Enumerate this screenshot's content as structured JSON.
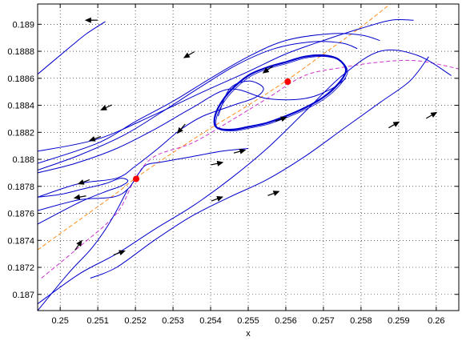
{
  "chart_data": {
    "type": "line",
    "title": "",
    "xlabel": "x",
    "ylabel": "",
    "xlim": [
      0.2494,
      0.2606
    ],
    "ylim": [
      0.18688,
      0.18915
    ],
    "grid": true,
    "grid_style": "dotted",
    "legend": "none",
    "x_ticks": [
      0.25,
      0.251,
      0.252,
      0.253,
      0.254,
      0.255,
      0.256,
      0.257,
      0.258,
      0.259,
      0.26
    ],
    "x_tick_labels": [
      "0.25",
      "0.251",
      "0.252",
      "0.253",
      "0.254",
      "0.255",
      "0.256",
      "0.257",
      "0.258",
      "0.259",
      "0.26"
    ],
    "y_ticks": [
      0.187,
      0.1872,
      0.1874,
      0.1876,
      0.1878,
      0.188,
      0.1882,
      0.1884,
      0.1886,
      0.1888,
      0.189
    ],
    "y_tick_labels": [
      "0.187",
      "0.1872",
      "0.1874",
      "0.1876",
      "0.1878",
      "0.188",
      "0.1882",
      "0.1884",
      "0.1886",
      "0.1888",
      "0.189"
    ],
    "colors": {
      "trajectory": "#0000cc",
      "nullcline_orange": "#ff8c1a",
      "nullcline_magenta": "#cc33cc",
      "equilibrium": "#ff0000",
      "arrow": "#000000"
    },
    "equilibria": [
      {
        "x": 0.25202,
        "y": 0.187855
      },
      {
        "x": 0.25605,
        "y": 0.188575
      }
    ],
    "series": [
      {
        "role": "nullcline-orange",
        "x": [
          0.2494,
          0.2505,
          0.2515,
          0.252,
          0.253,
          0.254,
          0.255,
          0.256,
          0.257,
          0.258,
          0.259
        ],
        "y": [
          0.18733,
          0.18755,
          0.18775,
          0.18786,
          0.18805,
          0.18823,
          0.1884,
          0.18858,
          0.18878,
          0.18898,
          0.1892
        ]
      },
      {
        "role": "nullcline-magenta",
        "x": [
          0.2495,
          0.2505,
          0.2515,
          0.252,
          0.2525,
          0.2535,
          0.2545,
          0.2555,
          0.2565,
          0.2575,
          0.2585,
          0.2595,
          0.2606
        ],
        "y": [
          0.18712,
          0.18735,
          0.1876,
          0.18786,
          0.18802,
          0.18812,
          0.18828,
          0.18845,
          0.18862,
          0.18868,
          0.18872,
          0.18873,
          0.18867
        ]
      },
      {
        "role": "limit-cycle",
        "x": [
          0.2541,
          0.2542,
          0.2545,
          0.255,
          0.2555,
          0.256,
          0.2565,
          0.257,
          0.2574,
          0.2576,
          0.2574,
          0.257,
          0.2565,
          0.256,
          0.2555,
          0.255,
          0.2546,
          0.2542,
          0.2541
        ],
        "y": [
          0.18828,
          0.18838,
          0.1885,
          0.18862,
          0.18868,
          0.18872,
          0.18876,
          0.18877,
          0.18874,
          0.18866,
          0.18856,
          0.18846,
          0.18838,
          0.18832,
          0.18827,
          0.18824,
          0.18822,
          0.18823,
          0.18828
        ]
      },
      {
        "role": "trajectory",
        "x": [
          0.2512,
          0.2507,
          0.2503,
          0.2494
        ],
        "y": [
          0.18902,
          0.18893,
          0.18884,
          0.18863
        ]
      },
      {
        "role": "trajectory",
        "x": [
          0.2594,
          0.2588,
          0.258,
          0.257,
          0.256,
          0.255,
          0.2538,
          0.2525,
          0.251,
          0.2494
        ],
        "y": [
          0.18903,
          0.18903,
          0.18897,
          0.18888,
          0.18878,
          0.18865,
          0.1885,
          0.18833,
          0.18815,
          0.18806
        ]
      },
      {
        "role": "trajectory",
        "x": [
          0.2585,
          0.258,
          0.2572,
          0.256,
          0.255,
          0.254,
          0.253,
          0.252,
          0.251,
          0.2494
        ],
        "y": [
          0.18888,
          0.18892,
          0.18893,
          0.18888,
          0.18876,
          0.1886,
          0.18843,
          0.18828,
          0.18812,
          0.18797
        ]
      },
      {
        "role": "trajectory",
        "x": [
          0.2579,
          0.2575,
          0.2567,
          0.2557,
          0.2547,
          0.2537,
          0.2527,
          0.2517,
          0.2505,
          0.2494
        ],
        "y": [
          0.18882,
          0.18886,
          0.18887,
          0.18882,
          0.1887,
          0.18853,
          0.18835,
          0.18818,
          0.18803,
          0.18792
        ]
      },
      {
        "role": "trajectory",
        "x": [
          0.2576,
          0.2572,
          0.2565,
          0.2555,
          0.2545,
          0.2535,
          0.2525,
          0.2515,
          0.2504,
          0.2494
        ],
        "y": [
          0.1886,
          0.18852,
          0.18845,
          0.18845,
          0.18852,
          0.18838,
          0.18822,
          0.18808,
          0.18797,
          0.1879
        ]
      },
      {
        "role": "trajectory",
        "x": [
          0.2494,
          0.2505,
          0.2515,
          0.252,
          0.2526,
          0.2532,
          0.2538,
          0.2546,
          0.2552,
          0.2554,
          0.255,
          0.2545,
          0.2542
        ],
        "y": [
          0.18772,
          0.18782,
          0.18786,
          0.18795,
          0.18808,
          0.18822,
          0.18832,
          0.1884,
          0.18846,
          0.18853,
          0.18858,
          0.18852,
          0.18832
        ]
      },
      {
        "role": "trajectory",
        "x": [
          0.2494,
          0.2505,
          0.2512,
          0.2516,
          0.2518,
          0.2516,
          0.2512,
          0.2506,
          0.25,
          0.2494
        ],
        "y": [
          0.18752,
          0.18768,
          0.18776,
          0.1878,
          0.18784,
          0.18786,
          0.18782,
          0.18778,
          0.18774,
          0.18772
        ]
      },
      {
        "role": "trajectory",
        "x": [
          0.2494,
          0.2505,
          0.2514,
          0.2518,
          0.2521,
          0.2523,
          0.2527,
          0.2535,
          0.2543,
          0.255
        ],
        "y": [
          0.18762,
          0.1877,
          0.18772,
          0.18778,
          0.1879,
          0.18796,
          0.18798,
          0.18802,
          0.18806,
          0.18808
        ]
      },
      {
        "role": "trajectory",
        "x": [
          0.2494,
          0.2502,
          0.2508,
          0.2512,
          0.2515,
          0.2518
        ],
        "y": [
          0.18688,
          0.18715,
          0.18733,
          0.18748,
          0.18762,
          0.18778
        ]
      },
      {
        "role": "trajectory",
        "x": [
          0.2494,
          0.2505,
          0.2515,
          0.2525,
          0.2535,
          0.2545,
          0.2555,
          0.2565,
          0.2575,
          0.2585,
          0.2595,
          0.2604
        ],
        "y": [
          0.18693,
          0.18715,
          0.1873,
          0.18748,
          0.18765,
          0.18785,
          0.18808,
          0.18835,
          0.18862,
          0.1888,
          0.18877,
          0.18862
        ]
      },
      {
        "role": "trajectory",
        "x": [
          0.2508,
          0.2515,
          0.2525,
          0.2535,
          0.2545,
          0.2555,
          0.2565,
          0.2575,
          0.2585,
          0.2593,
          0.2598
        ],
        "y": [
          0.18712,
          0.1872,
          0.1874,
          0.18758,
          0.18772,
          0.18785,
          0.18802,
          0.18822,
          0.18842,
          0.18858,
          0.18876
        ]
      }
    ],
    "arrows": [
      {
        "x": 0.2508,
        "y": 0.18903,
        "dir": 180
      },
      {
        "x": 0.2534,
        "y": 0.18877,
        "dir": 210
      },
      {
        "x": 0.2512,
        "y": 0.18838,
        "dir": 205
      },
      {
        "x": 0.2509,
        "y": 0.18815,
        "dir": 200
      },
      {
        "x": 0.2555,
        "y": 0.18866,
        "dir": 215
      },
      {
        "x": 0.2532,
        "y": 0.18822,
        "dir": 230
      },
      {
        "x": 0.2506,
        "y": 0.18783,
        "dir": 200
      },
      {
        "x": 0.2505,
        "y": 0.18772,
        "dir": 190
      },
      {
        "x": 0.2542,
        "y": 0.18797,
        "dir": 12
      },
      {
        "x": 0.2548,
        "y": 0.18806,
        "dir": 15
      },
      {
        "x": 0.2559,
        "y": 0.1883,
        "dir": 20
      },
      {
        "x": 0.2505,
        "y": 0.18737,
        "dir": 55
      },
      {
        "x": 0.2516,
        "y": 0.18731,
        "dir": 20
      },
      {
        "x": 0.2542,
        "y": 0.18771,
        "dir": 20
      },
      {
        "x": 0.2557,
        "y": 0.18775,
        "dir": 20
      },
      {
        "x": 0.2589,
        "y": 0.18826,
        "dir": 30
      },
      {
        "x": 0.2599,
        "y": 0.18833,
        "dir": 30
      }
    ]
  }
}
